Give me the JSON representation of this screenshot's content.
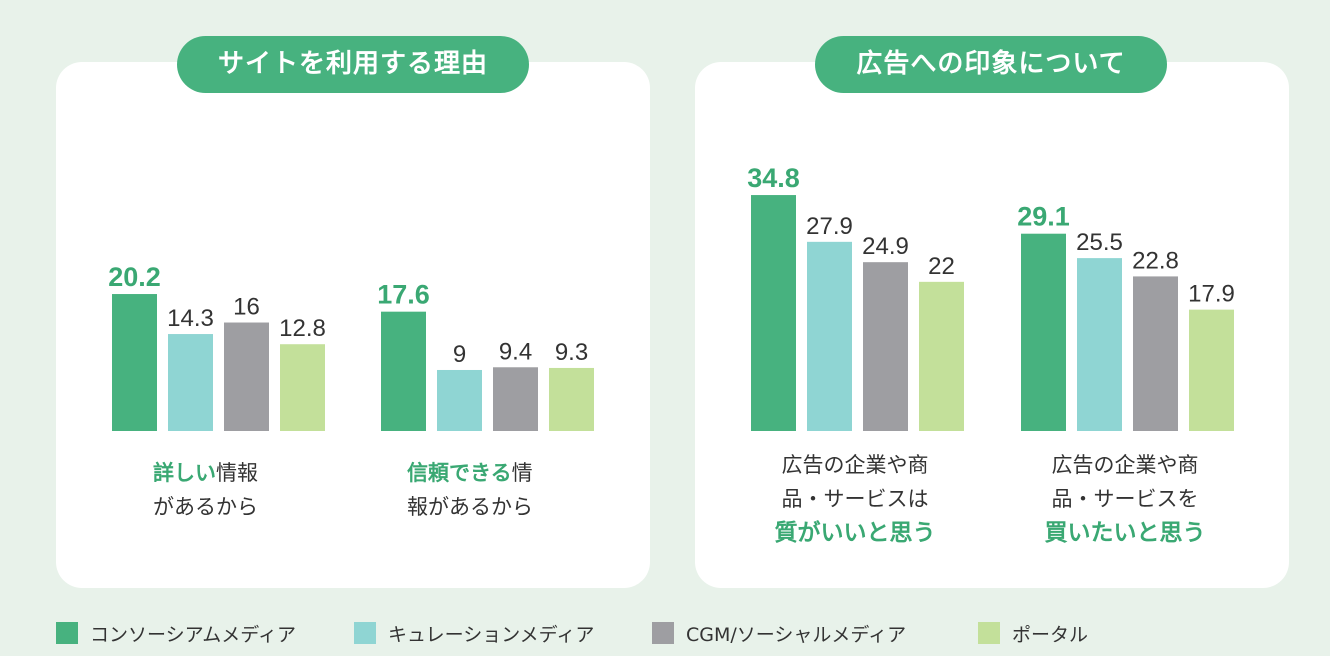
{
  "panels": {
    "left_title": "サイトを利用する理由",
    "right_title": "広告への印象について"
  },
  "captions": {
    "g1_hl": "詳しい",
    "g1_rest": "情報",
    "g1_line2": "があるから",
    "g2_hl": "信頼できる",
    "g2_rest": "情",
    "g2_line2": "報があるから",
    "g3_line1": "広告の企業や商",
    "g3_line2": "品・サービスは",
    "g3_hl": "質がいいと思う",
    "g4_line1": "広告の企業や商",
    "g4_line2": "品・サービスを",
    "g4_hl": "買いたいと思う"
  },
  "legend": {
    "items": [
      {
        "label": "コンソーシアムメディア",
        "color": "#47b27f"
      },
      {
        "label": "キュレーションメディア",
        "color": "#8fd5d3"
      },
      {
        "label": "CGM/ソーシャルメディア",
        "color": "#9e9ea2"
      },
      {
        "label": "ポータル",
        "color": "#c3e09a"
      }
    ]
  },
  "chart_data": {
    "type": "bar",
    "series_names": [
      "コンソーシアムメディア",
      "キュレーションメディア",
      "CGM/ソーシャルメディア",
      "ポータル"
    ],
    "colors": [
      "#47b27f",
      "#8fd5d3",
      "#9e9ea2",
      "#c3e09a"
    ],
    "groups": [
      {
        "panel": "サイトを利用する理由",
        "values": [
          20.2,
          14.3,
          16,
          12.8
        ],
        "labels": [
          "20.2",
          "14.3",
          "16",
          "12.8"
        ]
      },
      {
        "panel": "サイトを利用する理由",
        "values": [
          17.6,
          9,
          9.4,
          9.3
        ],
        "labels": [
          "17.6",
          "9",
          "9.4",
          "9.3"
        ]
      },
      {
        "panel": "広告への印象について",
        "values": [
          34.8,
          27.9,
          24.9,
          22
        ],
        "labels": [
          "34.8",
          "27.9",
          "24.9",
          "22"
        ]
      },
      {
        "panel": "広告への印象について",
        "values": [
          29.1,
          25.5,
          22.8,
          17.9
        ],
        "labels": [
          "29.1",
          "25.5",
          "22.8",
          "17.9"
        ]
      }
    ]
  }
}
